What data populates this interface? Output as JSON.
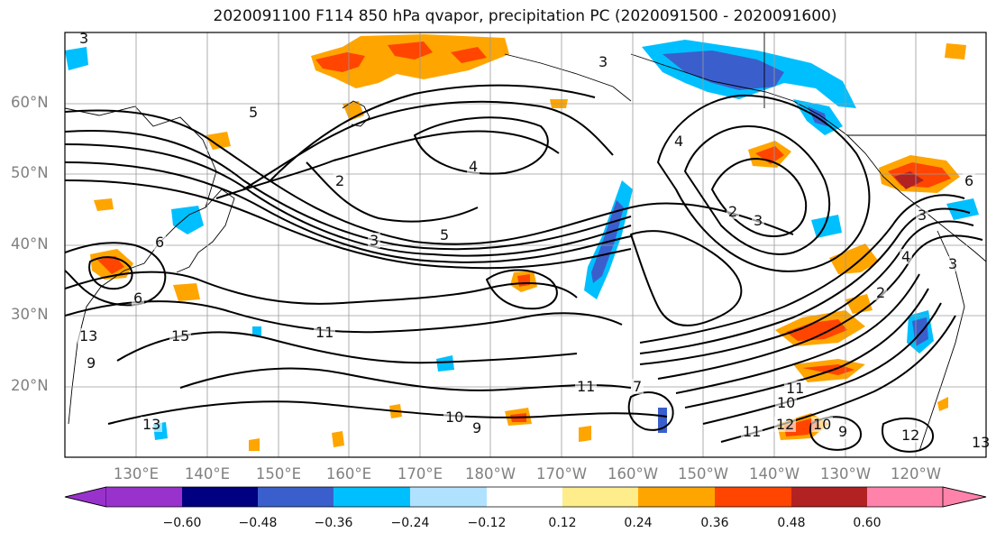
{
  "title": "2020091100 F114 850 hPa qvapor, precipitation PC (2020091500 - 2020091600)",
  "lat_labels": [
    "60°N",
    "50°N",
    "40°N",
    "30°N",
    "20°N"
  ],
  "lon_labels": [
    "130°E",
    "140°E",
    "150°E",
    "160°E",
    "170°E",
    "180°W",
    "170°W",
    "160°W",
    "150°W",
    "140°W",
    "130°W",
    "120°W"
  ],
  "colorbar": {
    "tick_labels": [
      "−0.60",
      "−0.48",
      "−0.36",
      "−0.24",
      "−0.12",
      "0.12",
      "0.24",
      "0.36",
      "0.48",
      "0.60"
    ],
    "colors": [
      "#9932cc",
      "#000080",
      "#3a5fcd",
      "#00bfff",
      "#b0e2ff",
      "#ffffff",
      "#ffec8b",
      "#ffa500",
      "#ff4500",
      "#b22222",
      "#ff82ab"
    ]
  },
  "contour_labels": [
    "3",
    "5",
    "4",
    "2",
    "3",
    "5",
    "3",
    "4",
    "2",
    "3",
    "6",
    "6",
    "2",
    "3",
    "4",
    "3",
    "6",
    "13",
    "15",
    "11",
    "9",
    "11",
    "10",
    "12",
    "10",
    "9",
    "12",
    "13",
    "13",
    "11",
    "11",
    "10",
    "9",
    "7"
  ]
}
